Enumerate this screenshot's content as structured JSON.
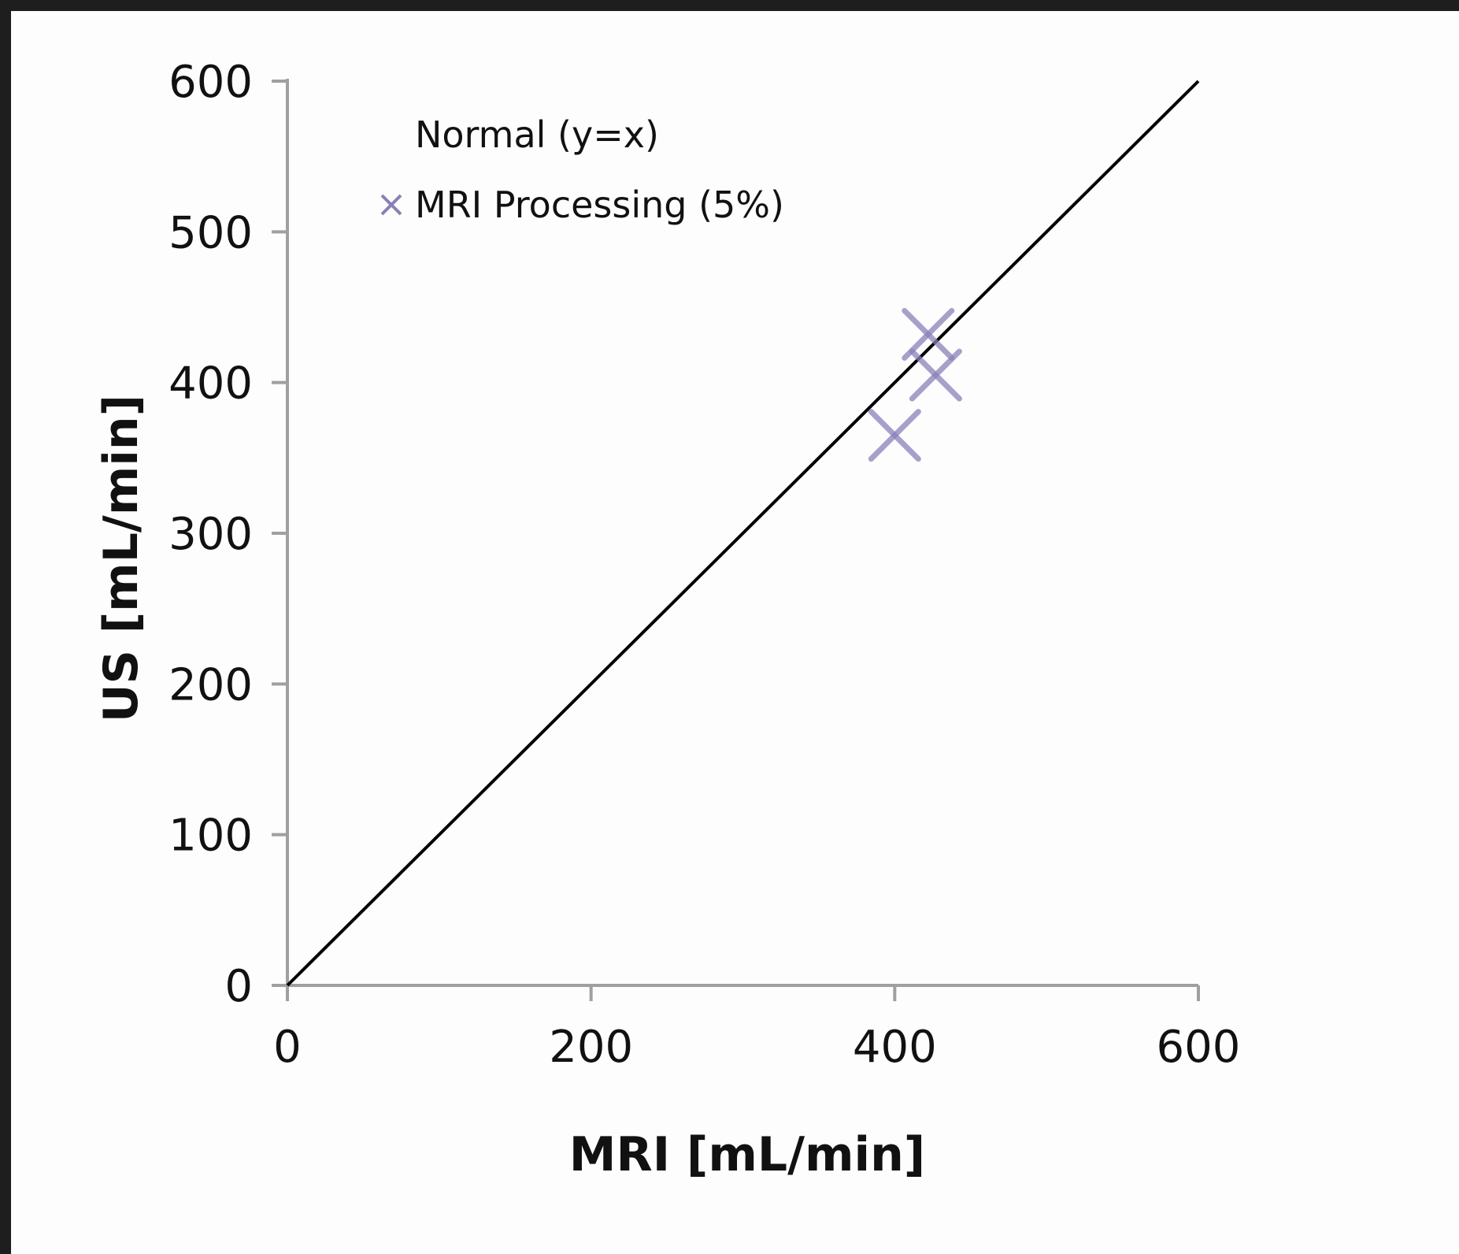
{
  "chart_data": {
    "type": "scatter",
    "xlabel": "MRI [mL/min]",
    "ylabel": "US [mL/min]",
    "xlim": [
      0,
      600
    ],
    "ylim": [
      0,
      600
    ],
    "x_ticks": [
      "0",
      "200",
      "400",
      "600"
    ],
    "y_ticks": [
      "0",
      "100",
      "200",
      "300",
      "400",
      "500",
      "600"
    ],
    "grid": false,
    "legend_position": "top-left",
    "series": [
      {
        "name": "Normal (y=x)",
        "kind": "line",
        "color": "#000000",
        "x": [
          0,
          600
        ],
        "y": [
          0,
          600
        ]
      },
      {
        "name": "MRI Processing (5%)",
        "kind": "scatter",
        "marker": "x",
        "color": "#8a80b8",
        "x": [
          400,
          422,
          427
        ],
        "y": [
          365,
          432,
          405
        ]
      }
    ]
  }
}
